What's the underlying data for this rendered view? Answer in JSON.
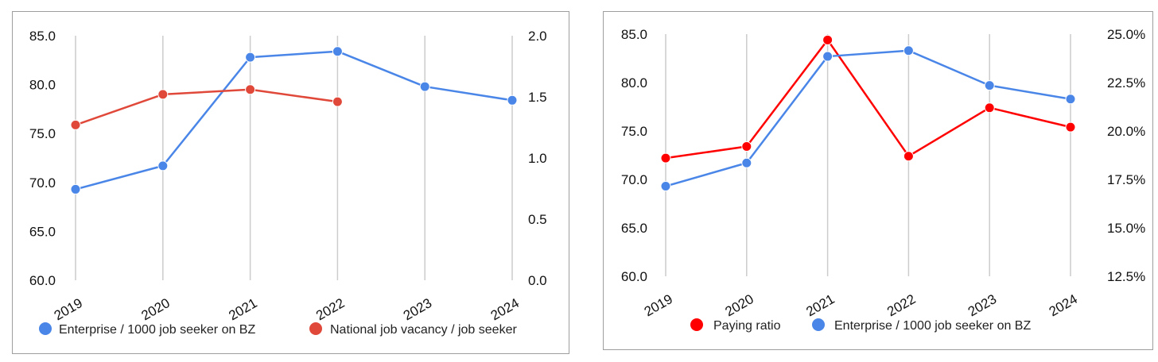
{
  "chart_data": [
    {
      "type": "line",
      "categories": [
        "2019",
        "2020",
        "2021",
        "2022",
        "2023",
        "2024"
      ],
      "y_left": {
        "range": [
          60,
          85
        ],
        "ticks": [
          "60.0",
          "65.0",
          "70.0",
          "75.0",
          "80.0",
          "85.0"
        ]
      },
      "y_right": {
        "range": [
          0,
          2
        ],
        "ticks": [
          "0.0",
          "0.5",
          "1.0",
          "1.5",
          "2.0"
        ]
      },
      "series": [
        {
          "name": "Enterprise / 1000 job seeker on BZ",
          "axis": "left",
          "color": "#4a86e8",
          "values": [
            69.3,
            71.7,
            82.8,
            83.4,
            79.8,
            78.4
          ]
        },
        {
          "name": "National job vacancy / job seeker",
          "axis": "right",
          "color": "#e0483a",
          "values": [
            1.27,
            1.52,
            1.56,
            1.46,
            null,
            null
          ]
        }
      ],
      "legend_position": "bottom",
      "grid": "vertical"
    },
    {
      "type": "line",
      "categories": [
        "2019",
        "2020",
        "2021",
        "2022",
        "2023",
        "2024"
      ],
      "y_left": {
        "range": [
          60,
          85
        ],
        "ticks": [
          "60.0",
          "65.0",
          "70.0",
          "75.0",
          "80.0",
          "85.0"
        ]
      },
      "y_right": {
        "range": [
          12.5,
          25
        ],
        "ticks": [
          "12.5%",
          "15.0%",
          "17.5%",
          "20.0%",
          "22.5%",
          "25.0%"
        ]
      },
      "series": [
        {
          "name": "Paying ratio",
          "axis": "right",
          "color": "#ff0000",
          "values": [
            18.6,
            19.2,
            24.7,
            18.7,
            21.2,
            20.2
          ]
        },
        {
          "name": "Enterprise / 1000 job seeker on BZ",
          "axis": "left",
          "color": "#4a86e8",
          "values": [
            69.3,
            71.7,
            82.7,
            83.3,
            79.7,
            78.3
          ]
        }
      ],
      "legend_position": "bottom",
      "grid": "vertical"
    }
  ]
}
